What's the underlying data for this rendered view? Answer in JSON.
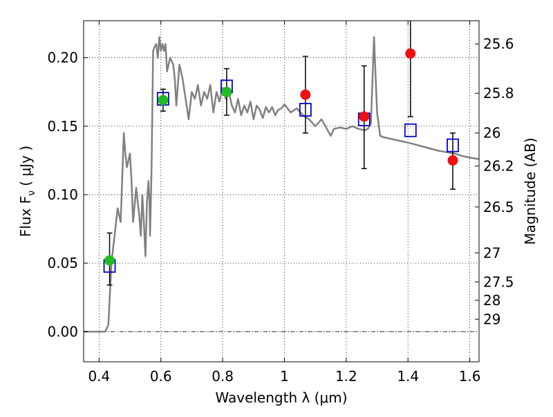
{
  "chart_data": {
    "type": "scatter",
    "xlabel": "Wavelength  λ (μm)",
    "ylabel_left": "Flux  F",
    "ylabel_left_sub": "ν",
    "ylabel_left_unit": " (  μJy  )",
    "ylabel_right": "Magnitude (AB)",
    "xlim": [
      0.35,
      1.63
    ],
    "ylim": [
      -0.022,
      0.227
    ],
    "x_ticks": [
      0.4,
      0.6,
      0.8,
      1.0,
      1.2,
      1.4,
      1.6
    ],
    "x_tick_labels": [
      "0.4",
      "0.6",
      "0.8",
      "1",
      "1.2",
      "1.4",
      "1.6"
    ],
    "y_ticks": [
      0.0,
      0.05,
      0.1,
      0.15,
      0.2
    ],
    "y_tick_labels": [
      "0.00",
      "0.05",
      "0.10",
      "0.15",
      "0.20"
    ],
    "right_ticks": [
      {
        "label": "25.6",
        "flux": 0.21
      },
      {
        "label": "25.8",
        "flux": 0.174
      },
      {
        "label": "26",
        "flux": 0.145
      },
      {
        "label": "26.2",
        "flux": 0.121
      },
      {
        "label": "26.5",
        "flux": 0.091
      },
      {
        "label": "27",
        "flux": 0.0575
      },
      {
        "label": "27.5",
        "flux": 0.0363
      },
      {
        "label": "28",
        "flux": 0.0229
      },
      {
        "label": "29",
        "flux": 0.0091
      }
    ],
    "grid": true,
    "colors": {
      "spectrum": "#808080",
      "model": "#0000cc",
      "detected": "#22bb22",
      "other": "#ee1111",
      "errorbar": "#000000"
    },
    "spectrum": {
      "name": "",
      "x": [
        0.35,
        0.4,
        0.41,
        0.42,
        0.43,
        0.44,
        0.45,
        0.46,
        0.47,
        0.48,
        0.485,
        0.49,
        0.5,
        0.505,
        0.51,
        0.52,
        0.525,
        0.53,
        0.535,
        0.54,
        0.545,
        0.55,
        0.555,
        0.56,
        0.563,
        0.565,
        0.57,
        0.575,
        0.58,
        0.585,
        0.59,
        0.595,
        0.6,
        0.605,
        0.61,
        0.615,
        0.62,
        0.63,
        0.64,
        0.645,
        0.65,
        0.66,
        0.67,
        0.68,
        0.69,
        0.7,
        0.71,
        0.72,
        0.73,
        0.74,
        0.75,
        0.76,
        0.77,
        0.78,
        0.79,
        0.8,
        0.81,
        0.82,
        0.83,
        0.84,
        0.85,
        0.86,
        0.87,
        0.88,
        0.89,
        0.9,
        0.91,
        0.92,
        0.93,
        0.94,
        0.95,
        0.96,
        0.97,
        0.98,
        0.99,
        1.0,
        1.02,
        1.04,
        1.06,
        1.08,
        1.1,
        1.12,
        1.14,
        1.15,
        1.16,
        1.18,
        1.2,
        1.22,
        1.24,
        1.26,
        1.27,
        1.28,
        1.29,
        1.3,
        1.31,
        1.32,
        1.34,
        1.36,
        1.4,
        1.45,
        1.5,
        1.55,
        1.58,
        1.6,
        1.63
      ],
      "y": [
        0.0,
        0.0,
        0.0,
        0.0,
        0.005,
        0.05,
        0.07,
        0.09,
        0.08,
        0.145,
        0.13,
        0.12,
        0.13,
        0.11,
        0.08,
        0.105,
        0.095,
        0.085,
        0.07,
        0.1,
        0.08,
        0.055,
        0.095,
        0.11,
        0.095,
        0.07,
        0.12,
        0.205,
        0.208,
        0.21,
        0.2,
        0.215,
        0.205,
        0.21,
        0.205,
        0.21,
        0.19,
        0.2,
        0.195,
        0.185,
        0.165,
        0.195,
        0.185,
        0.17,
        0.155,
        0.175,
        0.17,
        0.18,
        0.165,
        0.175,
        0.17,
        0.18,
        0.16,
        0.175,
        0.168,
        0.178,
        0.17,
        0.175,
        0.165,
        0.16,
        0.17,
        0.158,
        0.165,
        0.16,
        0.168,
        0.155,
        0.165,
        0.162,
        0.156,
        0.164,
        0.16,
        0.164,
        0.158,
        0.162,
        0.163,
        0.166,
        0.16,
        0.163,
        0.158,
        0.155,
        0.15,
        0.155,
        0.147,
        0.143,
        0.148,
        0.149,
        0.148,
        0.15,
        0.148,
        0.147,
        0.148,
        0.152,
        0.215,
        0.16,
        0.143,
        0.142,
        0.141,
        0.14,
        0.138,
        0.135,
        0.132,
        0.13,
        0.128,
        0.127,
        0.126
      ]
    },
    "model_points": {
      "x": [
        0.434,
        0.607,
        0.813,
        1.068,
        1.258,
        1.408,
        1.545
      ],
      "y": [
        0.048,
        0.17,
        0.179,
        0.162,
        0.155,
        0.147,
        0.136
      ]
    },
    "detected_points": {
      "x": [
        0.434,
        0.607,
        0.813
      ],
      "y": [
        0.052,
        0.169,
        0.175
      ],
      "err_low": [
        0.034,
        0.161,
        0.158
      ],
      "err_high": [
        0.072,
        0.177,
        0.192
      ]
    },
    "other_points": {
      "x": [
        1.068,
        1.258,
        1.408,
        1.545
      ],
      "y": [
        0.173,
        0.157,
        0.203,
        0.125
      ],
      "err_low": [
        0.145,
        0.119,
        0.157,
        0.104
      ],
      "err_high": [
        0.201,
        0.194,
        0.227,
        0.145
      ]
    }
  }
}
